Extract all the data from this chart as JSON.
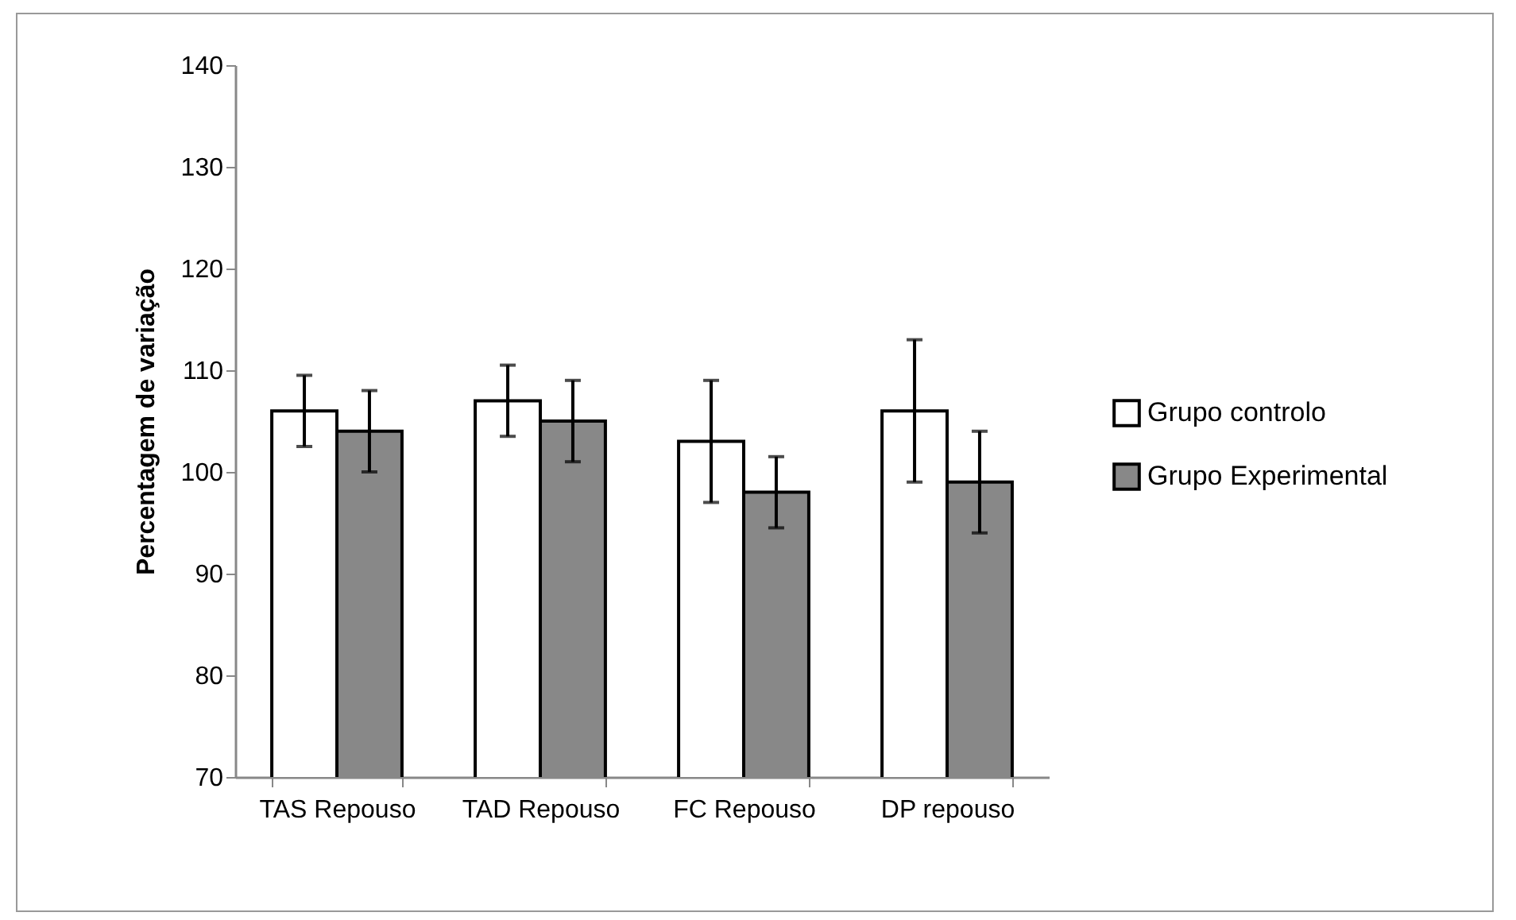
{
  "chart_data": {
    "type": "bar",
    "ylabel": "Percentagem de variação",
    "categories": [
      "TAS Repouso",
      "TAD Repouso",
      "FC Repouso",
      "DP repouso"
    ],
    "series": [
      {
        "name": "Grupo controlo",
        "color": "#ffffff",
        "values": [
          106,
          107,
          103,
          106
        ],
        "errors": [
          3.5,
          3.5,
          6,
          7
        ]
      },
      {
        "name": "Grupo Experimental",
        "color": "#888888",
        "values": [
          104,
          105,
          98,
          99
        ],
        "errors": [
          4,
          4,
          3.5,
          5
        ]
      }
    ],
    "ylim": [
      70,
      140
    ],
    "yticks": [
      70,
      80,
      90,
      100,
      110,
      120,
      130,
      140
    ],
    "grid": false,
    "legend": "right"
  }
}
